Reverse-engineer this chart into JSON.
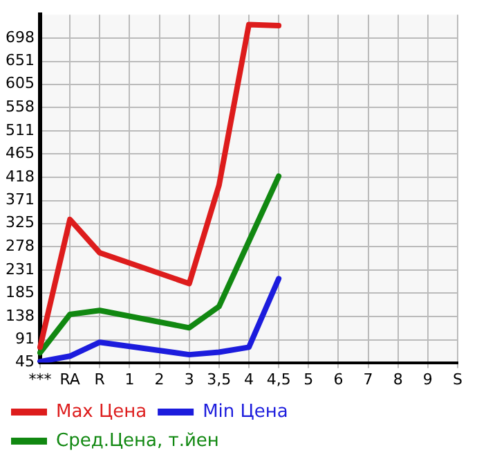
{
  "chart_data": {
    "type": "line",
    "categories": [
      "***",
      "RA",
      "R",
      "1",
      "2",
      "3",
      "3,5",
      "4",
      "4,5",
      "5",
      "6",
      "7",
      "8",
      "9",
      "S"
    ],
    "series": [
      {
        "name": "Max Цена",
        "color": "#dd1c1c",
        "values": [
          76,
          333,
          266,
          null,
          null,
          204,
          402,
          725,
          723,
          null,
          null,
          null,
          null,
          null,
          null
        ]
      },
      {
        "name": "Min Цена",
        "color": "#1c1cdd",
        "values": [
          47,
          58,
          86,
          null,
          null,
          61,
          66,
          76,
          214,
          null,
          null,
          null,
          null,
          null,
          null
        ]
      },
      {
        "name": "Сред.Цена, т.йен",
        "color": "#118811",
        "values": [
          65,
          142,
          150,
          null,
          null,
          115,
          158,
          289,
          420,
          null,
          null,
          null,
          null,
          null,
          null
        ]
      }
    ],
    "ylim": [
      45,
      745
    ],
    "yticks": [
      45,
      91,
      138,
      185,
      231,
      278,
      325,
      371,
      418,
      465,
      511,
      558,
      605,
      651,
      698
    ],
    "grid": true,
    "legend": "bottom",
    "marker": "none",
    "line_style": "solid"
  }
}
